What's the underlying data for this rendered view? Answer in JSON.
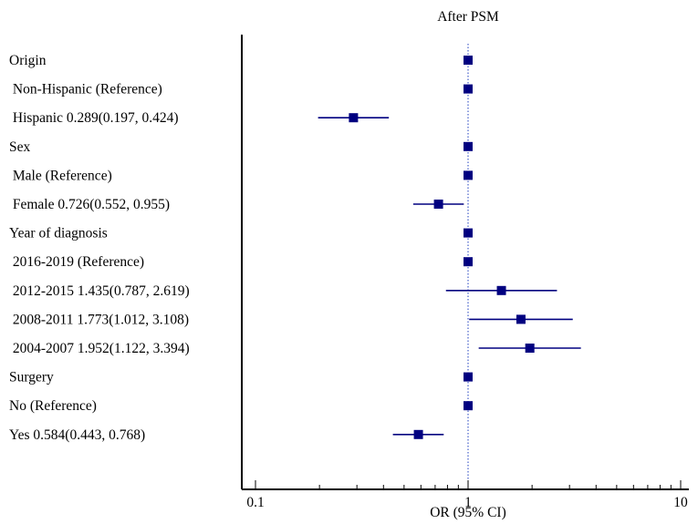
{
  "chart_data": {
    "type": "forest",
    "title": "After PSM",
    "xlabel": "OR (95% CI)",
    "x_scale": "log",
    "xlim": [
      0.1,
      10
    ],
    "x_ticks": [
      {
        "value": 0.1,
        "label": "0.1"
      },
      {
        "value": 1,
        "label": "1"
      },
      {
        "value": 10,
        "label": "10"
      }
    ],
    "reference_line": 1,
    "colors": {
      "marker": "#000080",
      "ref_line": "#1f3fbf",
      "axis": "#000000"
    },
    "rows": [
      {
        "label": "Origin",
        "or": 1,
        "ci": null
      },
      {
        "label": " Non-Hispanic (Reference)",
        "or": 1,
        "ci": null
      },
      {
        "label": " Hispanic 0.289(0.197, 0.424)",
        "or": 0.289,
        "ci": [
          0.197,
          0.424
        ]
      },
      {
        "label": "Sex",
        "or": 1,
        "ci": null
      },
      {
        "label": " Male (Reference)",
        "or": 1,
        "ci": null
      },
      {
        "label": " Female 0.726(0.552, 0.955)",
        "or": 0.726,
        "ci": [
          0.552,
          0.955
        ]
      },
      {
        "label": "Year of diagnosis",
        "or": 1,
        "ci": null
      },
      {
        "label": " 2016-2019 (Reference)",
        "or": 1,
        "ci": null
      },
      {
        "label": " 2012-2015 1.435(0.787, 2.619)",
        "or": 1.435,
        "ci": [
          0.787,
          2.619
        ]
      },
      {
        "label": " 2008-2011 1.773(1.012, 3.108)",
        "or": 1.773,
        "ci": [
          1.012,
          3.108
        ]
      },
      {
        "label": " 2004-2007 1.952(1.122, 3.394)",
        "or": 1.952,
        "ci": [
          1.122,
          3.394
        ]
      },
      {
        "label": "Surgery",
        "or": 1,
        "ci": null
      },
      {
        "label": "No (Reference)",
        "or": 1,
        "ci": null
      },
      {
        "label": "Yes 0.584(0.443, 0.768)",
        "or": 0.584,
        "ci": [
          0.443,
          0.768
        ]
      }
    ]
  }
}
